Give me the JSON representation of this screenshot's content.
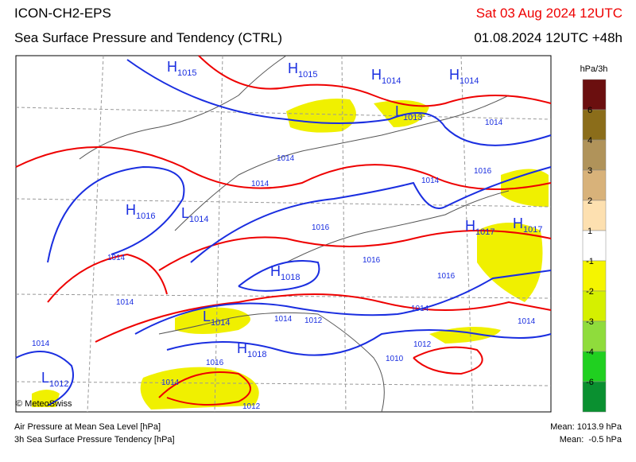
{
  "header": {
    "model": "ICON-CH2-EPS",
    "title": "Sea Surface Pressure and Tendency (CTRL)",
    "valid_time": "Sat 03 Aug 2024 12UTC",
    "run": "01.08.2024 12UTC +48h"
  },
  "colorbar": {
    "unit": "hPa/3h",
    "ticks": [
      6,
      4,
      3,
      2,
      1,
      -1,
      -2,
      -3,
      -4,
      -6
    ],
    "colors": [
      "#6b0f0f",
      "#8b6d1a",
      "#b0935a",
      "#d8b27a",
      "#fde0b0",
      "#ffffff",
      "#f5f500",
      "#d5f000",
      "#8fdc3c",
      "#20d020",
      "#0a9030"
    ]
  },
  "map": {
    "centers": [
      {
        "kind": "H",
        "value": 1015
      },
      {
        "kind": "H",
        "value": 1015
      },
      {
        "kind": "H",
        "value": 1014
      },
      {
        "kind": "H",
        "value": 1014
      },
      {
        "kind": "L",
        "value": 1013
      },
      {
        "kind": "H",
        "value": 1016
      },
      {
        "kind": "L",
        "value": 1014
      },
      {
        "kind": "H",
        "value": 1017
      },
      {
        "kind": "H",
        "value": 1017
      },
      {
        "kind": "H",
        "value": 1018
      },
      {
        "kind": "L",
        "value": 1014
      },
      {
        "kind": "H",
        "value": 1018
      },
      {
        "kind": "L",
        "value": 1012
      }
    ],
    "isobar_labels": [
      1014,
      1014,
      1016,
      1014,
      1014,
      1016,
      1014,
      1016,
      1016,
      1014,
      1014,
      1014,
      1012,
      1014,
      1014,
      1012,
      1016,
      1010,
      1014,
      1012
    ]
  },
  "footer": {
    "credit": "© MeteoSwiss",
    "legend_pressure": "Air Pressure at Mean Sea Level [hPa]",
    "legend_tendency": "3h Sea Surface Pressure Tendency [hPa]",
    "mean_pressure": "Mean: 1013.9 hPa",
    "mean_tendency": "Mean:  -0.5 hPa"
  }
}
